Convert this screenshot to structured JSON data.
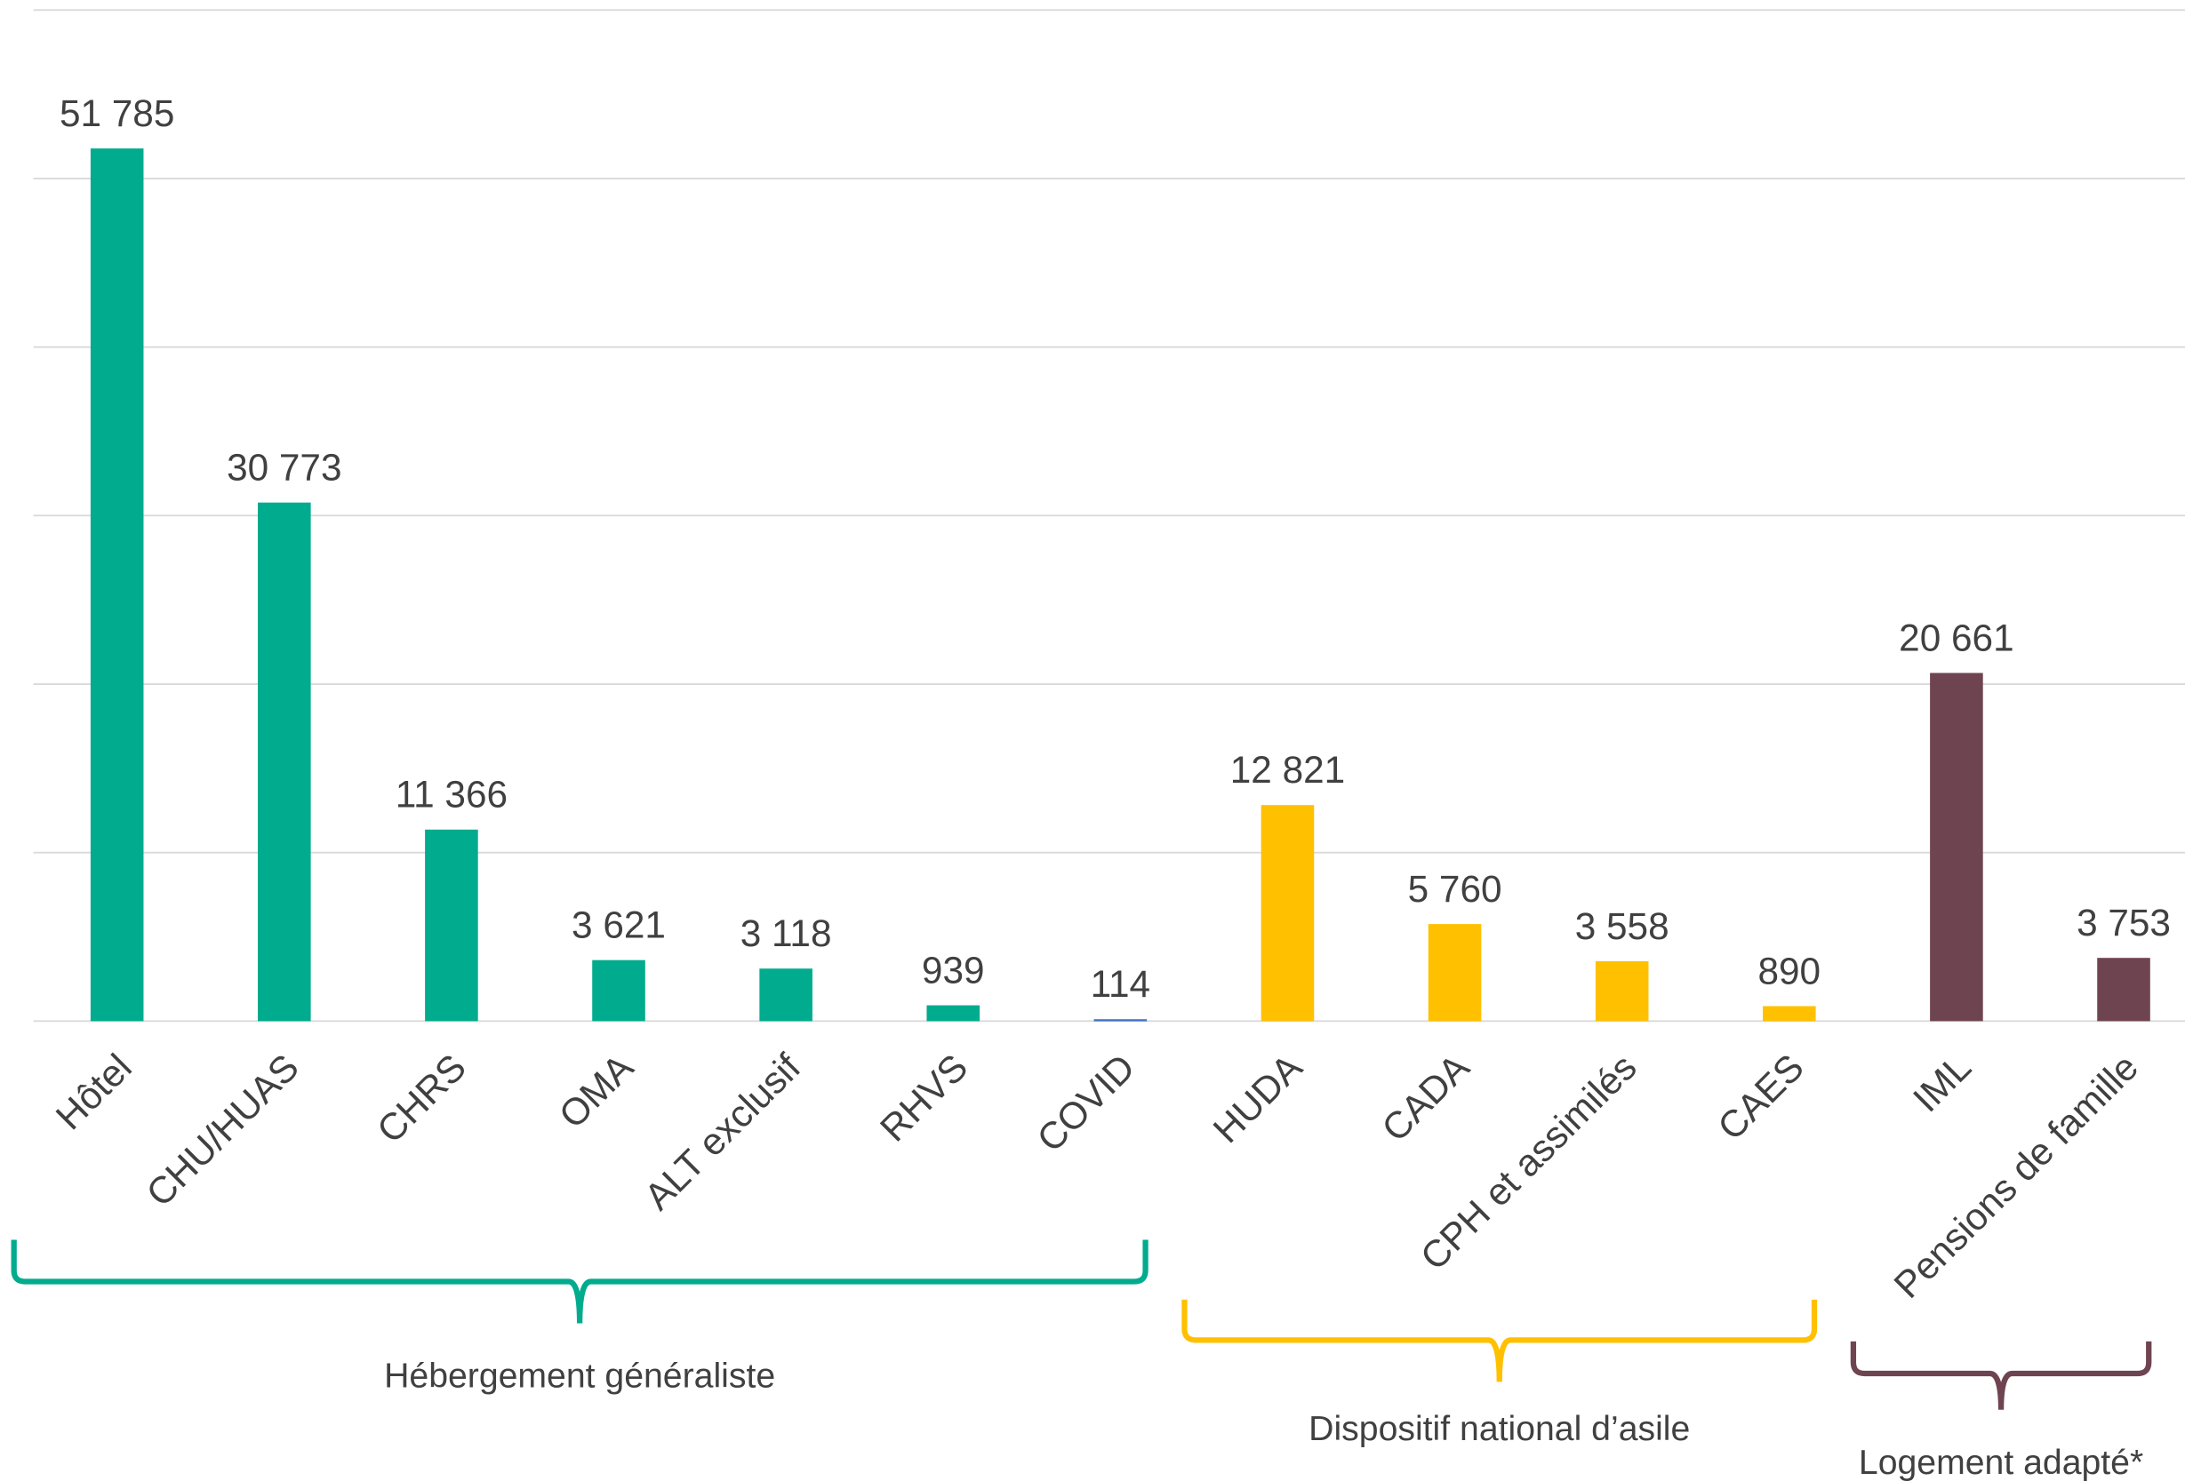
{
  "chart_data": {
    "type": "bar",
    "categories": [
      "Hôtel",
      "CHU/HUAS",
      "CHRS",
      "OMA",
      "ALT exclusif",
      "RHVS",
      "COVID",
      "HUDA",
      "CADA",
      "CPH et assimilés",
      "CAES",
      "IML",
      "Pensions de famille"
    ],
    "values": [
      51785,
      30773,
      11366,
      3621,
      3118,
      939,
      114,
      12821,
      5760,
      3558,
      890,
      20661,
      3753
    ],
    "value_labels": [
      "51 785",
      "30 773",
      "11 366",
      "3 621",
      "3 118",
      "939",
      "114",
      "12 821",
      "5 760",
      "3 558",
      "890",
      "20 661",
      "3 753"
    ],
    "colors": [
      "#00ab8e",
      "#00ab8e",
      "#00ab8e",
      "#00ab8e",
      "#00ab8e",
      "#00ab8e",
      "#4472c4",
      "#ffc000",
      "#ffc000",
      "#ffc000",
      "#ffc000",
      "#6f4451",
      "#6f4451"
    ],
    "ylim": [
      0,
      60000
    ],
    "yticks": [
      0,
      10000,
      20000,
      30000,
      40000,
      50000,
      60000
    ],
    "grid": true,
    "groups": [
      {
        "label": "Hébergement généraliste",
        "color": "#00ab8e",
        "members": [
          0,
          1,
          2,
          3,
          4,
          5,
          6
        ]
      },
      {
        "label": "Dispositif national d’asile",
        "color": "#ffc000",
        "members": [
          7,
          8,
          9,
          10
        ]
      },
      {
        "label": "Logement adapté*",
        "color": "#6f4451",
        "members": [
          11,
          12
        ]
      }
    ]
  }
}
